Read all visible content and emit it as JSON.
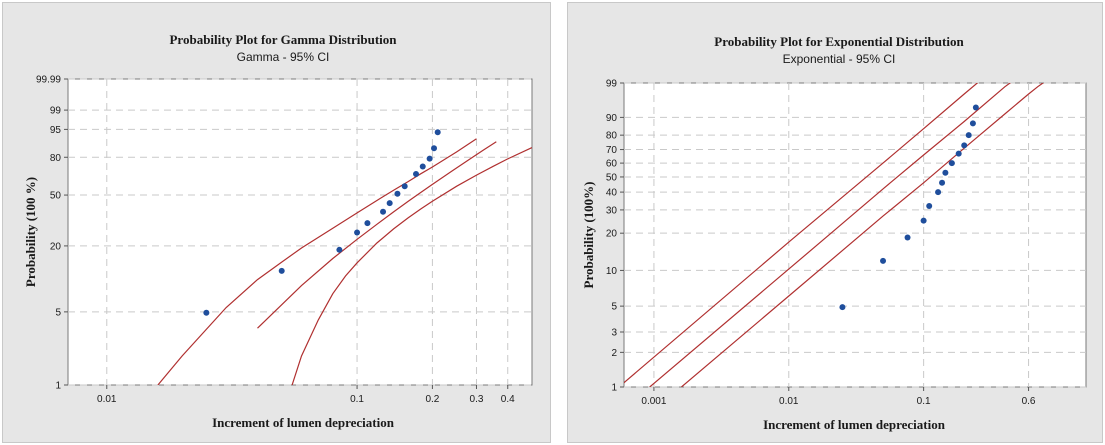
{
  "chart_data": [
    {
      "type": "scatter",
      "title": "Probability Plot for Gamma Distribution",
      "subtitle": "Gamma - 95% CI",
      "xlabel": "Increment of lumen depreciation",
      "ylabel": "Probability (100 %)",
      "x_scale": "log",
      "y_scale": "gamma-probability",
      "xlim": [
        0.007,
        0.5
      ],
      "ylim": [
        1,
        99.99
      ],
      "x_ticks": [
        0.01,
        0.1,
        0.2,
        0.3,
        0.4
      ],
      "x_tick_labels": [
        "0.01",
        "0.1",
        "0.2",
        "0.3",
        "0.4"
      ],
      "y_ticks": [
        1,
        5,
        20,
        50,
        80,
        95,
        99,
        99.99
      ],
      "y_tick_labels": [
        "1",
        "5",
        "20",
        "50",
        "80",
        "95",
        "99",
        "99.99"
      ],
      "grid": true,
      "colors": {
        "points": "#1f4e9c",
        "lines": "#b03030",
        "plot_bg": "#ffffff",
        "panel_bg": "#e6e6e6"
      },
      "points": [
        {
          "x": 0.025,
          "y": 4.9
        },
        {
          "x": 0.05,
          "y": 12
        },
        {
          "x": 0.085,
          "y": 18.5
        },
        {
          "x": 0.1,
          "y": 26
        },
        {
          "x": 0.11,
          "y": 31
        },
        {
          "x": 0.127,
          "y": 38
        },
        {
          "x": 0.135,
          "y": 44
        },
        {
          "x": 0.145,
          "y": 51
        },
        {
          "x": 0.155,
          "y": 57
        },
        {
          "x": 0.172,
          "y": 67
        },
        {
          "x": 0.183,
          "y": 73
        },
        {
          "x": 0.195,
          "y": 79
        },
        {
          "x": 0.203,
          "y": 86
        },
        {
          "x": 0.21,
          "y": 94
        }
      ],
      "fit": {
        "x": [
          0.04,
          0.06,
          0.08,
          0.1,
          0.12,
          0.14,
          0.16,
          0.18,
          0.2,
          0.24,
          0.28,
          0.32,
          0.36
        ],
        "y": [
          3.5,
          8.8,
          15.5,
          22.8,
          30.3,
          37.9,
          45.2,
          52.1,
          58.5,
          69.5,
          78.3,
          84.9,
          89.7
        ]
      },
      "ci_upper": {
        "x": [
          0.016,
          0.02,
          0.03,
          0.04,
          0.05,
          0.06,
          0.08,
          0.1,
          0.12,
          0.14,
          0.16,
          0.18,
          0.2,
          0.25,
          0.3
        ],
        "y": [
          1,
          1.9,
          5.5,
          10,
          14.4,
          19.2,
          28.2,
          37.2,
          45.9,
          53.8,
          60.8,
          67.2,
          72.6,
          83.7,
          91.2
        ]
      },
      "ci_lower": {
        "x": [
          0.055,
          0.06,
          0.07,
          0.08,
          0.09,
          0.1,
          0.12,
          0.14,
          0.16,
          0.18,
          0.2,
          0.25,
          0.3,
          0.35,
          0.4,
          0.5
        ],
        "y": [
          1,
          1.9,
          4.2,
          7.4,
          10.8,
          14.2,
          21.2,
          27.8,
          34.1,
          39.9,
          45.3,
          57,
          66.1,
          73.2,
          78.8,
          86.4
        ]
      }
    },
    {
      "type": "scatter",
      "title": "Probability Plot for Exponential Distribution",
      "subtitle": "Exponential - 95% CI",
      "xlabel": "Increment of lumen depreciation",
      "ylabel": "Probability (100%)",
      "x_scale": "log",
      "y_scale": "exponential-probability",
      "xlim": [
        0.0006,
        1.6
      ],
      "ylim": [
        1,
        99
      ],
      "x_ticks": [
        0.001,
        0.01,
        0.1,
        0.6
      ],
      "x_tick_labels": [
        "0.001",
        "0.01",
        "0.1",
        "0.6"
      ],
      "y_ticks": [
        1,
        2,
        3,
        5,
        10,
        20,
        30,
        40,
        50,
        60,
        70,
        80,
        90,
        99
      ],
      "y_tick_labels": [
        "1",
        "2",
        "3",
        "5",
        "10",
        "20",
        "30",
        "40",
        "50",
        "60",
        "70",
        "80",
        "90",
        "99"
      ],
      "grid": true,
      "colors": {
        "points": "#1f4e9c",
        "lines": "#b03030",
        "plot_bg": "#ffffff",
        "panel_bg": "#e6e6e6"
      },
      "points": [
        {
          "x": 0.025,
          "y": 4.9
        },
        {
          "x": 0.05,
          "y": 12
        },
        {
          "x": 0.076,
          "y": 18.5
        },
        {
          "x": 0.1,
          "y": 25
        },
        {
          "x": 0.11,
          "y": 32
        },
        {
          "x": 0.128,
          "y": 40
        },
        {
          "x": 0.137,
          "y": 46
        },
        {
          "x": 0.145,
          "y": 53
        },
        {
          "x": 0.162,
          "y": 60
        },
        {
          "x": 0.182,
          "y": 67
        },
        {
          "x": 0.2,
          "y": 73
        },
        {
          "x": 0.216,
          "y": 80
        },
        {
          "x": 0.232,
          "y": 87
        },
        {
          "x": 0.244,
          "y": 94
        }
      ],
      "fit": {
        "x": [
          0.00093,
          0.02,
          0.05,
          0.1,
          0.2,
          0.4,
          0.62
        ],
        "y": [
          1,
          19.5,
          42,
          66,
          88,
          98.6,
          99.8
        ]
      },
      "ci_upper": {
        "x": [
          0.00055,
          0.01,
          0.05,
          0.1,
          0.2,
          0.3,
          0.37
        ],
        "y": [
          1,
          17,
          60,
          84,
          97.5,
          99.6,
          99.9
        ]
      },
      "ci_lower": {
        "x": [
          0.0016,
          0.01,
          0.05,
          0.1,
          0.2,
          0.4,
          0.6,
          0.7,
          1.1
        ],
        "y": [
          1,
          6.1,
          27,
          46,
          71,
          91.5,
          97.5,
          98.6,
          99.8
        ]
      }
    }
  ]
}
